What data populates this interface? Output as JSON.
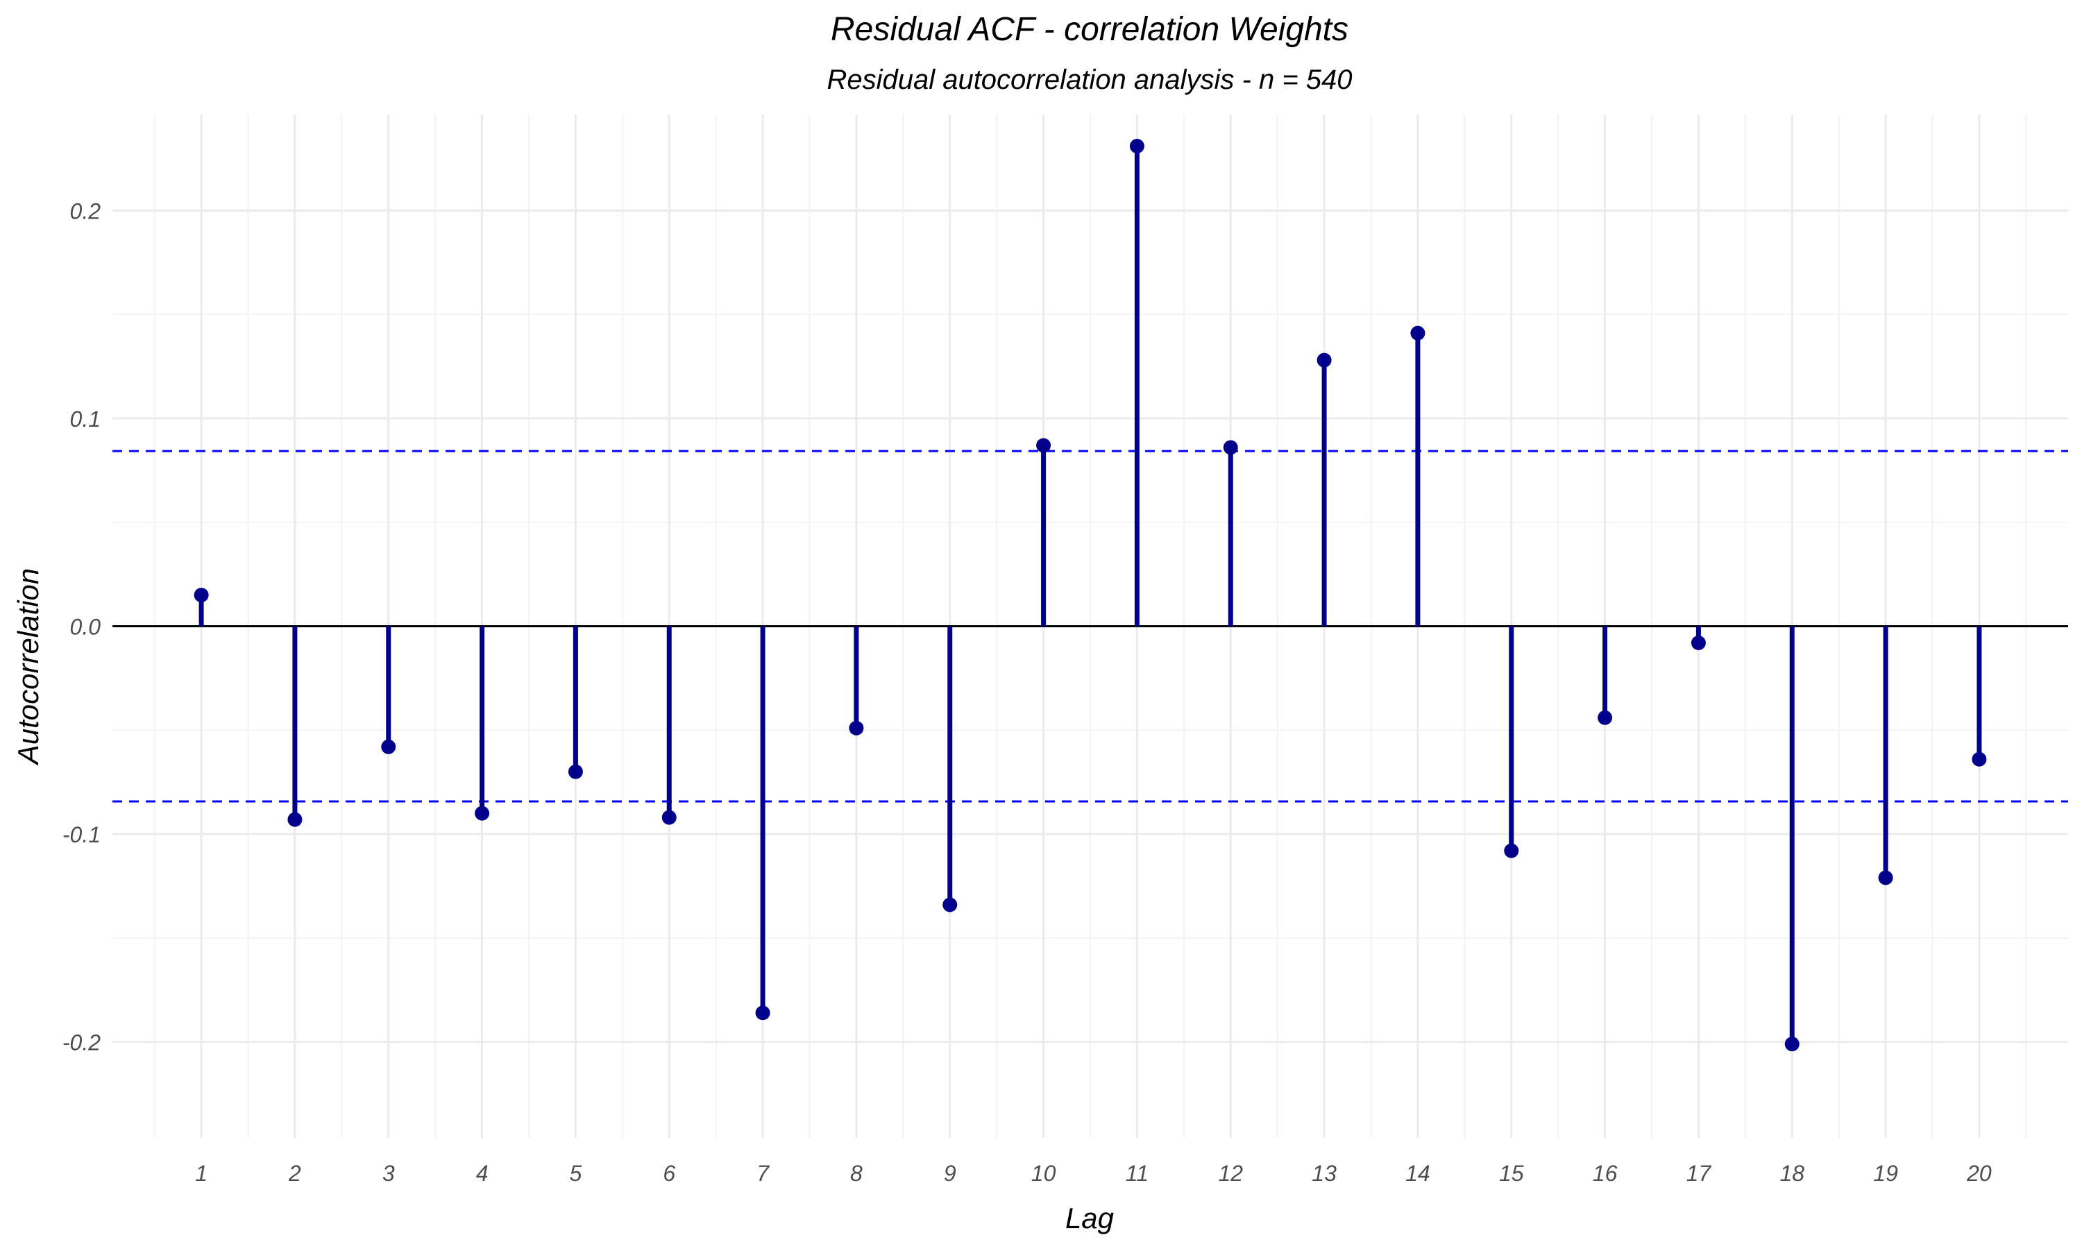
{
  "chart_data": {
    "type": "stem",
    "title": "Residual ACF - correlation Weights",
    "subtitle": "Residual autocorrelation analysis - n = 540",
    "xlabel": "Lag",
    "ylabel": "Autocorrelation",
    "x": [
      1,
      2,
      3,
      4,
      5,
      6,
      7,
      8,
      9,
      10,
      11,
      12,
      13,
      14,
      15,
      16,
      17,
      18,
      19,
      20
    ],
    "x_tick_labels": [
      "1",
      "2",
      "3",
      "4",
      "5",
      "6",
      "7",
      "8",
      "9",
      "10",
      "11",
      "12",
      "13",
      "14",
      "15",
      "16",
      "17",
      "18",
      "19",
      "20"
    ],
    "values": [
      0.015,
      -0.093,
      -0.058,
      -0.09,
      -0.07,
      -0.092,
      -0.186,
      -0.049,
      -0.134,
      0.087,
      0.231,
      0.086,
      0.128,
      0.141,
      -0.108,
      -0.044,
      -0.008,
      -0.201,
      -0.121,
      -0.064
    ],
    "y_ticks": [
      -0.2,
      -0.1,
      0.0,
      0.1,
      0.2
    ],
    "y_tick_labels": [
      "-0.2",
      "-0.1",
      "0.0",
      "0.1",
      "0.2"
    ],
    "ylim": [
      -0.2462,
      0.2462
    ],
    "xlim": [
      0.05,
      20.95
    ],
    "confidence_bound": 0.0843,
    "grid": true,
    "legend": "none",
    "colors": {
      "stem": "#00008b",
      "bound_line": "#0000ff",
      "zero_line": "#000000",
      "grid_major": "#ebebeb",
      "grid_minor": "#f3f3f3",
      "tick_text": "#4d4d4d"
    }
  }
}
